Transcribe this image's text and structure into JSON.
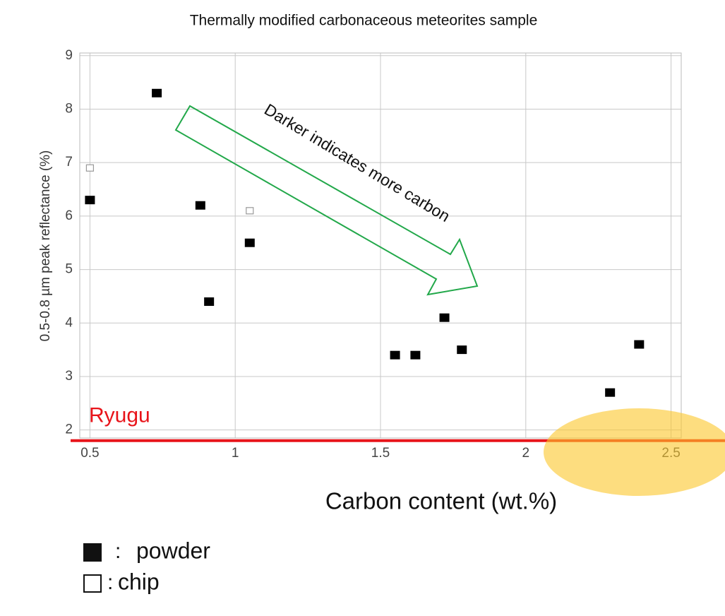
{
  "chart_data": {
    "type": "scatter",
    "title": "Thermally modified carbonaceous meteorites sample",
    "x_label": "Carbon content (wt.%)",
    "y_label": "0.5-0.8 µm peak reflectance (%)",
    "xlim": [
      0.465,
      2.535
    ],
    "ylim": [
      1.85,
      9.05
    ],
    "xticks": [
      0.5,
      1,
      1.5,
      2,
      2.5
    ],
    "yticks": [
      2,
      3,
      4,
      5,
      6,
      7,
      8,
      9
    ],
    "grid": true,
    "series": [
      {
        "name": "powder",
        "color": "#000000",
        "marker": "filled-square",
        "x": [
          0.5,
          0.73,
          0.88,
          0.91,
          1.05,
          1.55,
          1.62,
          1.72,
          1.78,
          2.29,
          2.39
        ],
        "values": [
          6.3,
          8.3,
          6.2,
          4.4,
          5.5,
          3.4,
          3.4,
          4.1,
          3.5,
          2.7,
          3.6
        ]
      },
      {
        "name": "chip",
        "color": "#999999",
        "marker": "open-square",
        "x": [
          0.5,
          1.05
        ],
        "values": [
          6.9,
          6.1
        ]
      }
    ],
    "legend_separator": ":",
    "reference_line": {
      "label": "Ryugu",
      "value": 1.8,
      "color": "#e8141a"
    },
    "annotation": {
      "text": "Darker indicates more carbon",
      "color": "#22a84a"
    }
  }
}
